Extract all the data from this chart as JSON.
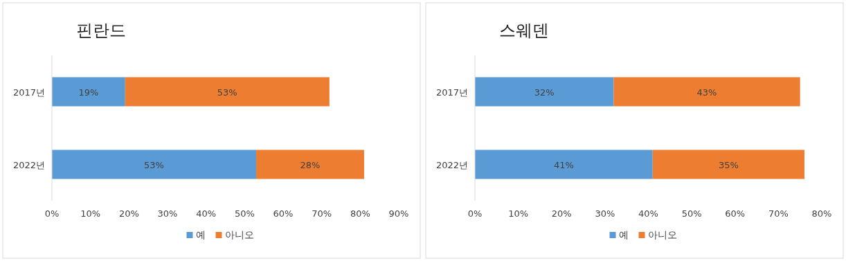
{
  "chart_data": [
    {
      "type": "bar",
      "orientation": "horizontal",
      "stacked": true,
      "title": "핀란드",
      "categories": [
        "2017년",
        "2022년"
      ],
      "series": [
        {
          "name": "예",
          "color": "#5b9bd5",
          "values": [
            19,
            53
          ],
          "value_labels": [
            "19%",
            "53%"
          ]
        },
        {
          "name": "아니오",
          "color": "#ed7d31",
          "values": [
            53,
            28
          ],
          "value_labels": [
            "53%",
            "28%"
          ]
        }
      ],
      "xlim": [
        0,
        90
      ],
      "xticks": [
        {
          "value": 0,
          "label": "0%"
        },
        {
          "value": 10,
          "label": "10%"
        },
        {
          "value": 20,
          "label": "20%"
        },
        {
          "value": 30,
          "label": "30%"
        },
        {
          "value": 40,
          "label": "40%"
        },
        {
          "value": 50,
          "label": "50%"
        },
        {
          "value": 60,
          "label": "60%"
        },
        {
          "value": 70,
          "label": "70%"
        },
        {
          "value": 80,
          "label": "80%"
        },
        {
          "value": 90,
          "label": "90%"
        }
      ],
      "legend": "bottom",
      "grid": false
    },
    {
      "type": "bar",
      "orientation": "horizontal",
      "stacked": true,
      "title": "스웨덴",
      "categories": [
        "2017년",
        "2022년"
      ],
      "series": [
        {
          "name": "예",
          "color": "#5b9bd5",
          "values": [
            32,
            41
          ],
          "value_labels": [
            "32%",
            "41%"
          ]
        },
        {
          "name": "아니오",
          "color": "#ed7d31",
          "values": [
            43,
            35
          ],
          "value_labels": [
            "43%",
            "35%"
          ]
        }
      ],
      "xlim": [
        0,
        80
      ],
      "xticks": [
        {
          "value": 0,
          "label": "0%"
        },
        {
          "value": 10,
          "label": "10%"
        },
        {
          "value": 20,
          "label": "20%"
        },
        {
          "value": 30,
          "label": "30%"
        },
        {
          "value": 40,
          "label": "40%"
        },
        {
          "value": 50,
          "label": "50%"
        },
        {
          "value": 60,
          "label": "60%"
        },
        {
          "value": 70,
          "label": "70%"
        },
        {
          "value": 80,
          "label": "80%"
        }
      ],
      "legend": "bottom",
      "grid": false
    }
  ]
}
